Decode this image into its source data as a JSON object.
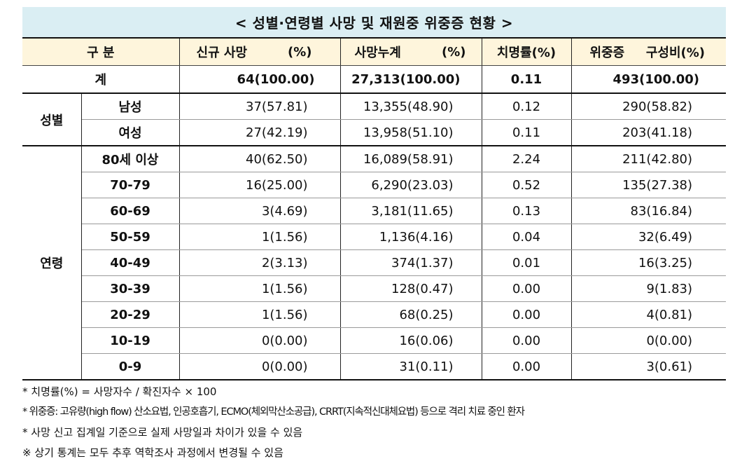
{
  "title": "< 성별·연령별 사망 및 재원중 위중증 현황 >",
  "header": {
    "category": "구 분",
    "new_deaths": "신규 사망",
    "new_deaths_pct": "(%)",
    "cum_deaths": "사망누계",
    "cum_deaths_pct": "(%)",
    "fatality_rate": "치명률(%)",
    "critical": "위중증",
    "critical_ratio": "구성비(%)"
  },
  "total": {
    "label": "계",
    "new_deaths": "64(100.00)",
    "cum_deaths": "27,313(100.00)",
    "fatality_rate": "0.11",
    "critical": "493(100.00)"
  },
  "sex": {
    "label": "성별",
    "rows": [
      {
        "sub": "남성",
        "new_deaths": "37(57.81)",
        "cum_deaths": "13,355(48.90)",
        "fatality_rate": "0.12",
        "critical": "290(58.82)"
      },
      {
        "sub": "여성",
        "new_deaths": "27(42.19)",
        "cum_deaths": "13,958(51.10)",
        "fatality_rate": "0.11",
        "critical": "203(41.18)"
      }
    ]
  },
  "age": {
    "label": "연령",
    "rows": [
      {
        "sub": "80세 이상",
        "new_deaths": "40(62.50)",
        "cum_deaths": "16,089(58.91)",
        "fatality_rate": "2.24",
        "critical": "211(42.80)"
      },
      {
        "sub": "70-79",
        "new_deaths": "16(25.00)",
        "cum_deaths": "6,290(23.03)",
        "fatality_rate": "0.52",
        "critical": "135(27.38)"
      },
      {
        "sub": "60-69",
        "new_deaths": "3(4.69)",
        "cum_deaths": "3,181(11.65)",
        "fatality_rate": "0.13",
        "critical": "83(16.84)"
      },
      {
        "sub": "50-59",
        "new_deaths": "1(1.56)",
        "cum_deaths": "1,136(4.16)",
        "fatality_rate": "0.04",
        "critical": "32(6.49)"
      },
      {
        "sub": "40-49",
        "new_deaths": "2(3.13)",
        "cum_deaths": "374(1.37)",
        "fatality_rate": "0.01",
        "critical": "16(3.25)"
      },
      {
        "sub": "30-39",
        "new_deaths": "1(1.56)",
        "cum_deaths": "128(0.47)",
        "fatality_rate": "0.00",
        "critical": "9(1.83)"
      },
      {
        "sub": "20-29",
        "new_deaths": "1(1.56)",
        "cum_deaths": "68(0.25)",
        "fatality_rate": "0.00",
        "critical": "4(0.81)"
      },
      {
        "sub": "10-19",
        "new_deaths": "0(0.00)",
        "cum_deaths": "16(0.06)",
        "fatality_rate": "0.00",
        "critical": "0(0.00)"
      },
      {
        "sub": "0-9",
        "new_deaths": "0(0.00)",
        "cum_deaths": "31(0.11)",
        "fatality_rate": "0.00",
        "critical": "3(0.61)"
      }
    ]
  },
  "notes": [
    "* 치명률(%) = 사망자수 / 확진자수 × 100",
    "* 위중증: 고유량(high flow) 산소요법, 인공호흡기, ECMO(체외막산소공급), CRRT(지속적신대체요법) 등으로 격리 치료 중인 환자",
    "* 사망 신고 집계일 기준으로 실제 사망일과 차이가 있을 수 있음",
    "※ 상기 통계는 모두 추후 역학조사 과정에서 변경될 수 있음"
  ]
}
